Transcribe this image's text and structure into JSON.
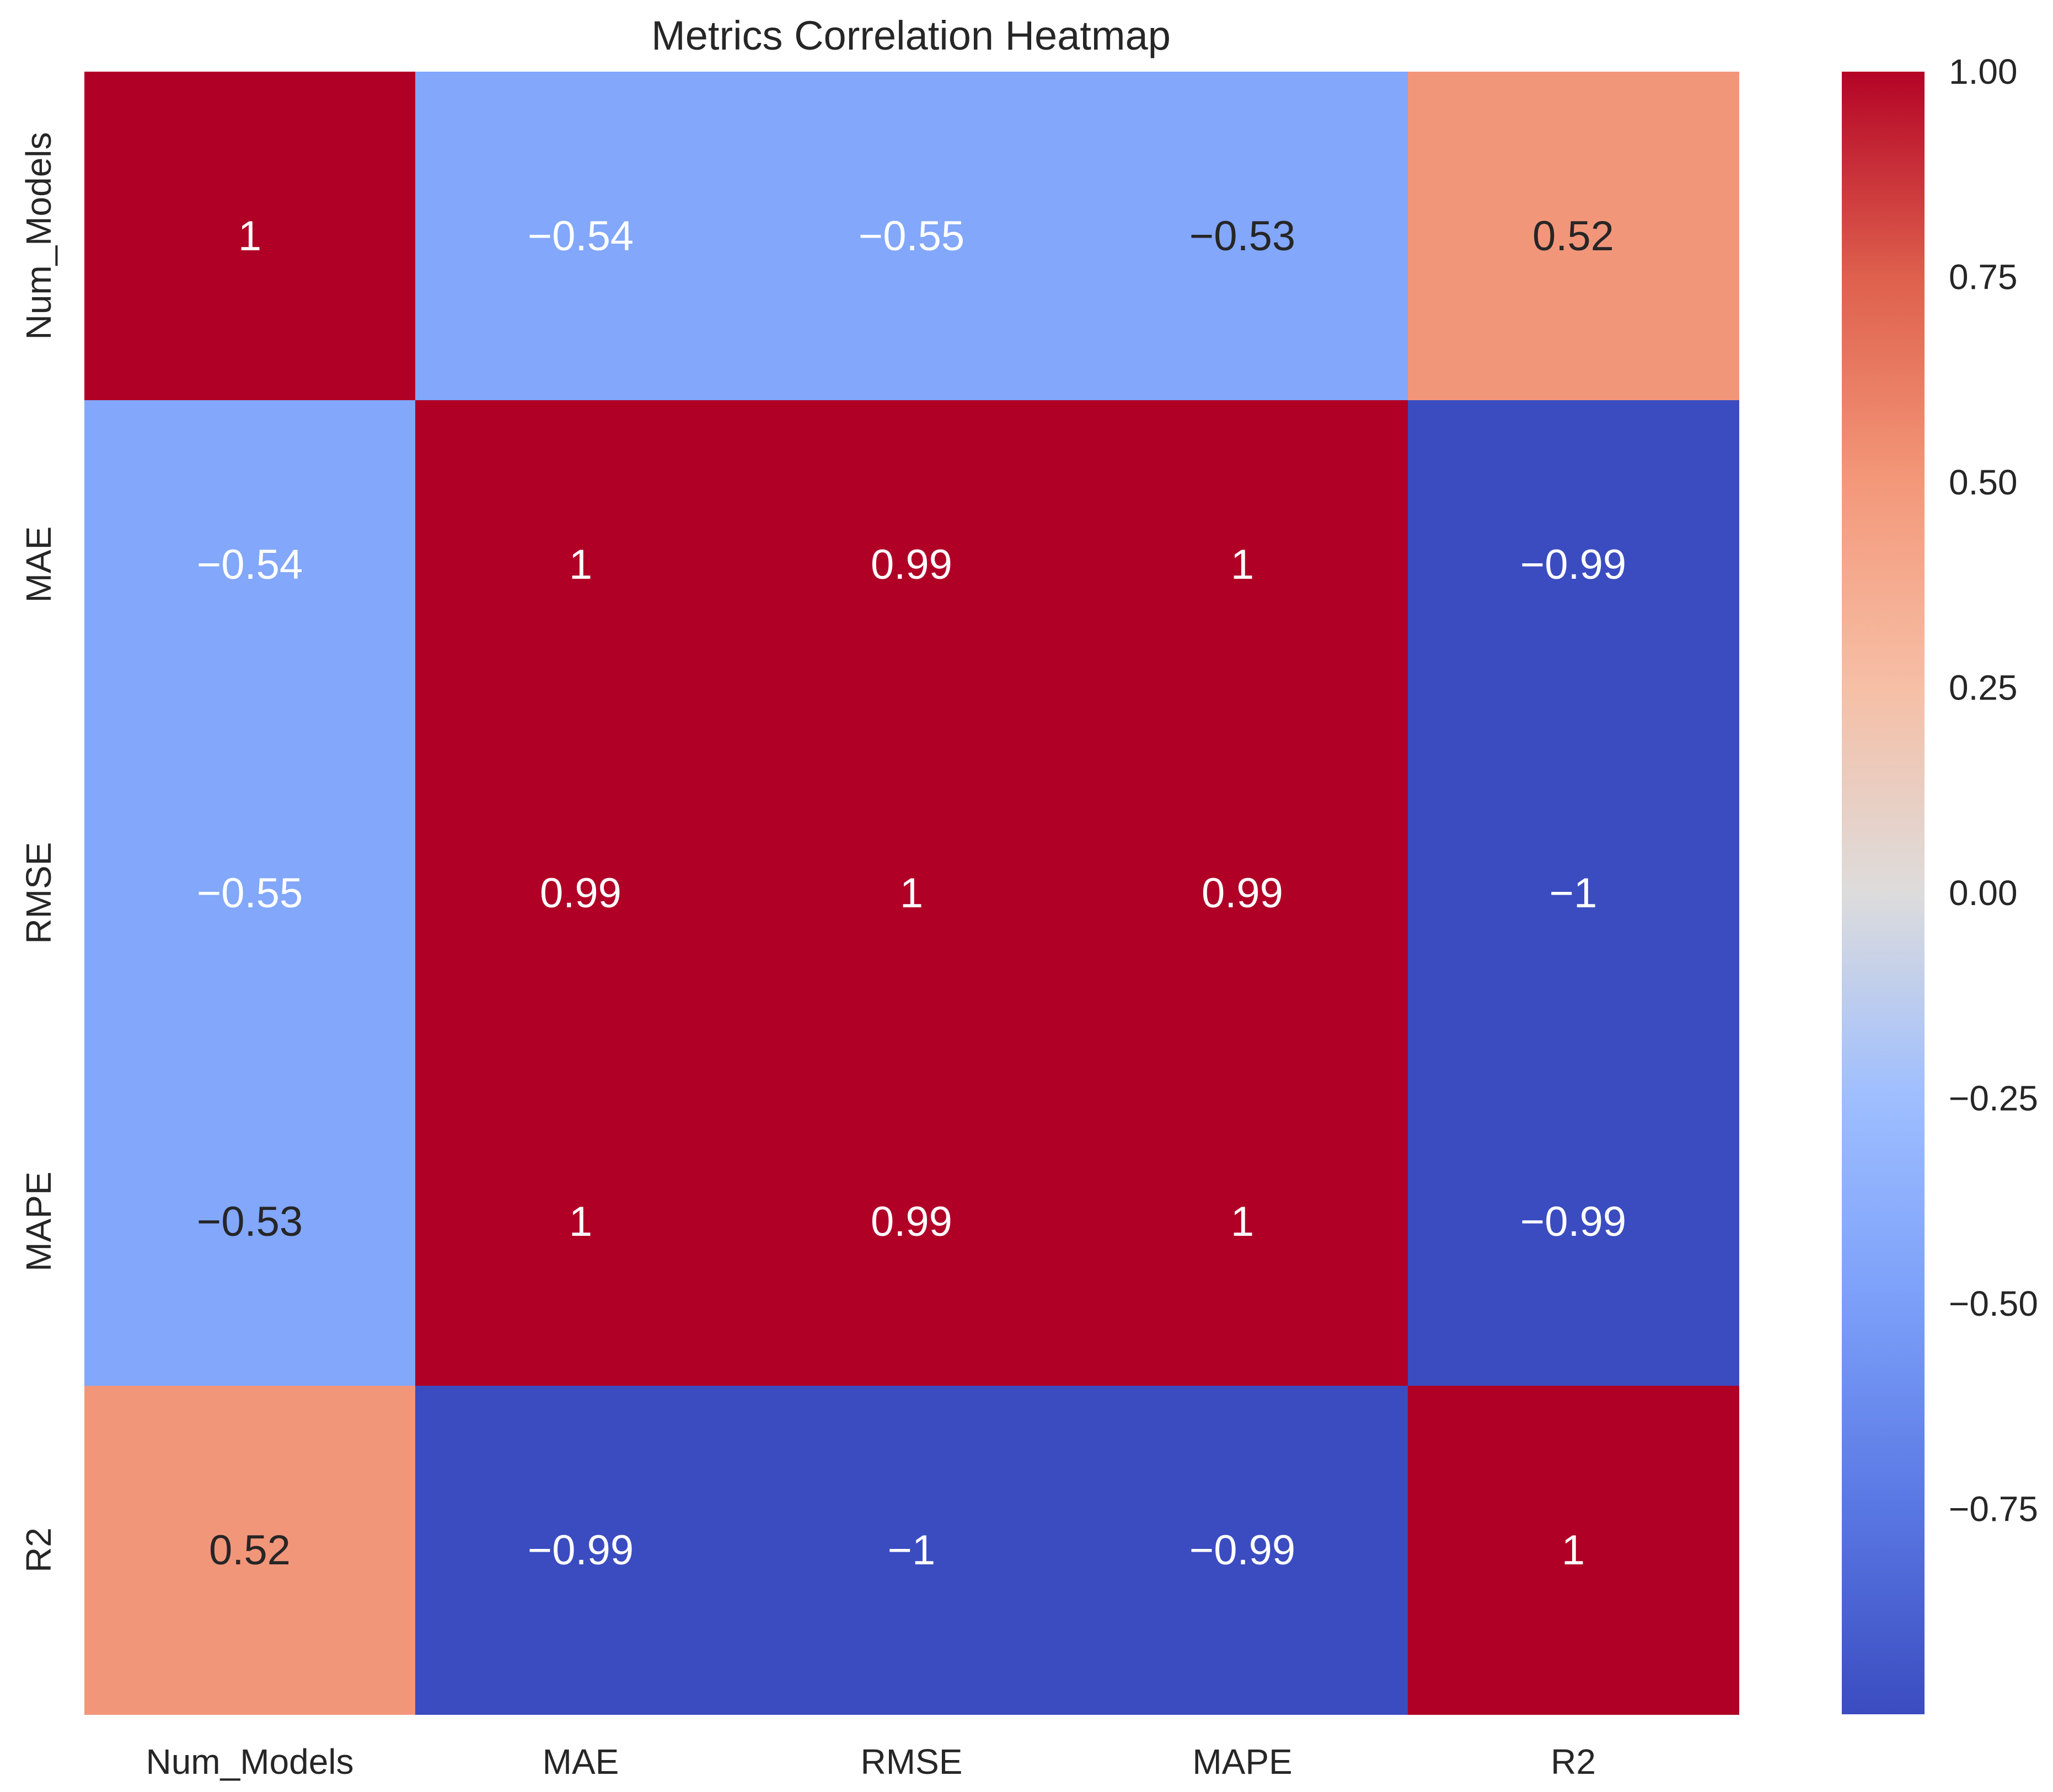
{
  "chart_data": {
    "type": "heatmap",
    "title": "Metrics Correlation Heatmap",
    "row_labels": [
      "Num_Models",
      "MAE",
      "RMSE",
      "MAPE",
      "R2"
    ],
    "col_labels": [
      "Num_Models",
      "MAE",
      "RMSE",
      "MAPE",
      "R2"
    ],
    "values": [
      [
        1.0,
        -0.54,
        -0.55,
        -0.53,
        0.52
      ],
      [
        -0.54,
        1.0,
        0.99,
        1.0,
        -0.99
      ],
      [
        -0.55,
        0.99,
        1.0,
        0.99,
        -1.0
      ],
      [
        -0.53,
        1.0,
        0.99,
        1.0,
        -0.99
      ],
      [
        0.52,
        -0.99,
        -1.0,
        -0.99,
        1.0
      ]
    ],
    "cell_labels": [
      [
        "1",
        "−0.54",
        "−0.55",
        "−0.53",
        "0.52"
      ],
      [
        "−0.54",
        "1",
        "0.99",
        "1",
        "−0.99"
      ],
      [
        "−0.55",
        "0.99",
        "1",
        "0.99",
        "−1"
      ],
      [
        "−0.53",
        "1",
        "0.99",
        "1",
        "−0.99"
      ],
      [
        "0.52",
        "−0.99",
        "−1",
        "−0.99",
        "1"
      ]
    ],
    "colormap": "coolwarm",
    "colorbar": {
      "vmin": -1.0,
      "vmax": 1.0,
      "ticks": [
        1.0,
        0.75,
        0.5,
        0.25,
        0.0,
        -0.25,
        -0.5,
        -0.75
      ],
      "tick_labels": [
        "1.00",
        "0.75",
        "0.50",
        "0.25",
        "0.00",
        "−0.25",
        "−0.50",
        "−0.75"
      ]
    },
    "colorbar_stops": [
      {
        "v": -1.0,
        "color": "#3b4cc0"
      },
      {
        "v": -0.75,
        "color": "#5977e3"
      },
      {
        "v": -0.5,
        "color": "#7b9ff9"
      },
      {
        "v": -0.25,
        "color": "#9ebeff"
      },
      {
        "v": 0.0,
        "color": "#dddcdc"
      },
      {
        "v": 0.25,
        "color": "#f6bfa6"
      },
      {
        "v": 0.5,
        "color": "#f4987a"
      },
      {
        "v": 0.75,
        "color": "#de604d"
      },
      {
        "v": 1.0,
        "color": "#b40426"
      }
    ],
    "cell_colors": {
      "strong_positive": "#b00026",
      "moderate_positive": "#f2967a",
      "moderate_negative": "#82a7fb",
      "strong_negative": "#3b4cc0"
    },
    "grid": false,
    "legend": "colorbar-right"
  }
}
